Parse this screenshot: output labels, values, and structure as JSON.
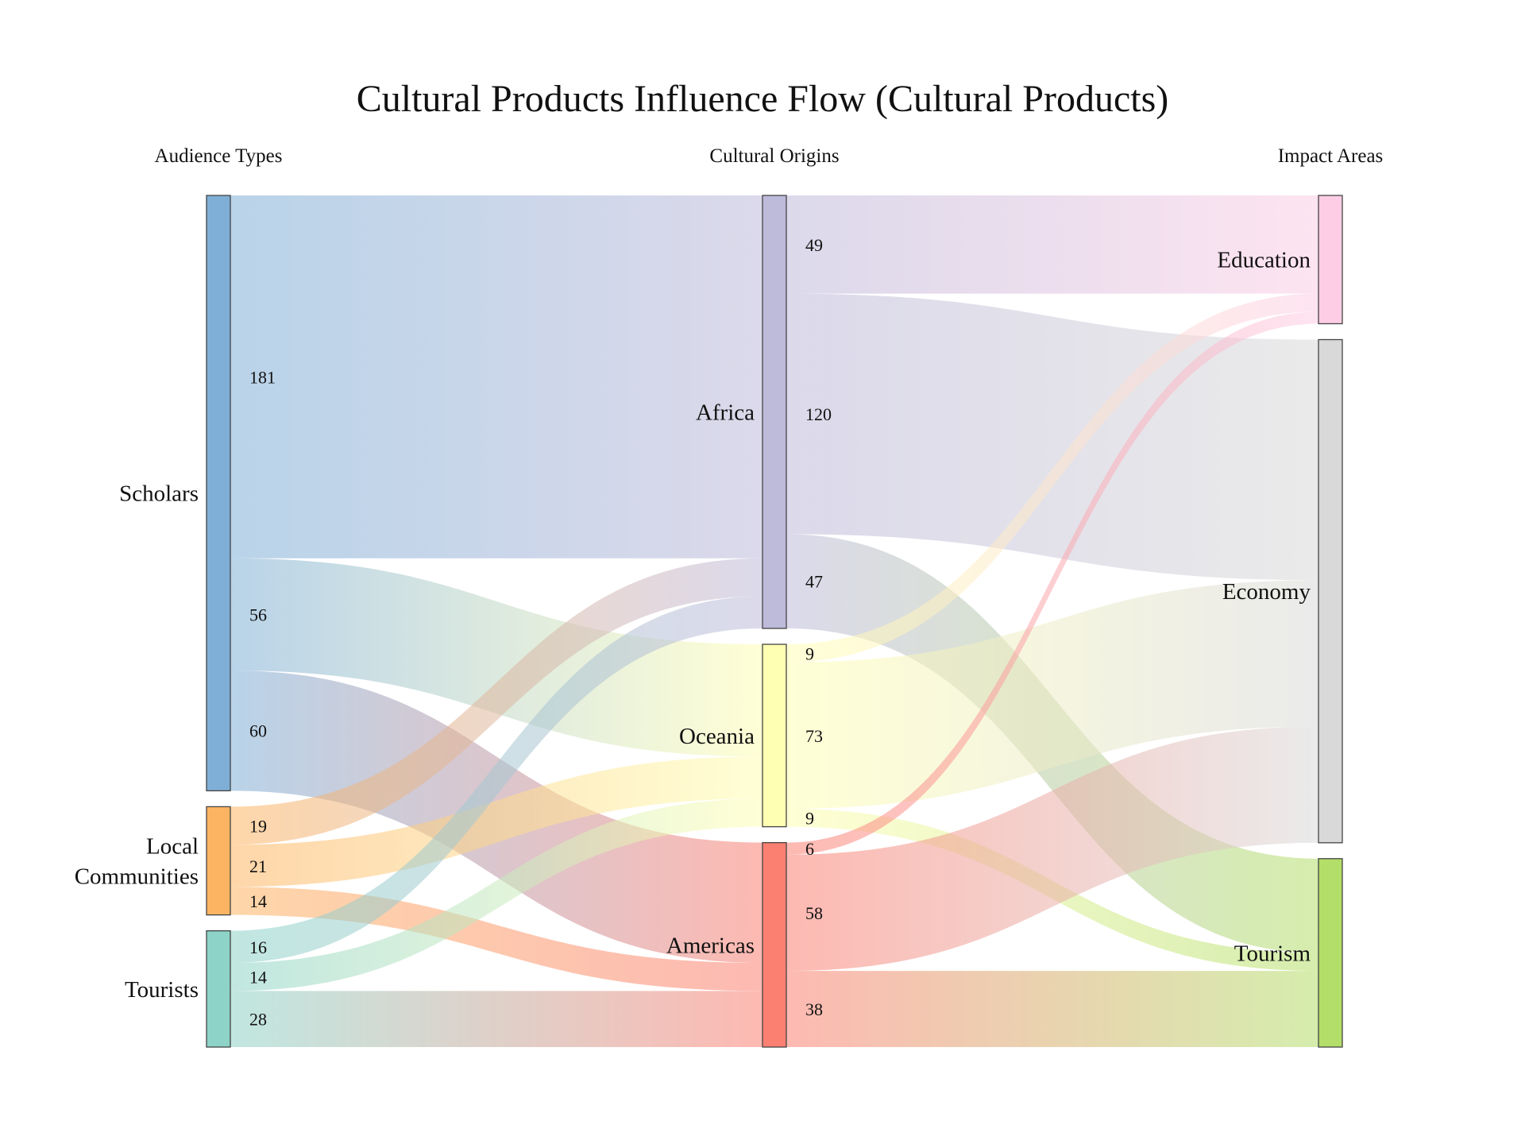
{
  "chart_data": {
    "type": "sankey",
    "title": "Cultural Products Influence Flow (Cultural Products)",
    "columns": [
      "Audience Types",
      "Cultural Origins",
      "Impact Areas"
    ],
    "nodes": [
      {
        "id": "scholars",
        "label": "Scholars",
        "column": 0,
        "color": "#7fafd6"
      },
      {
        "id": "local",
        "label": "Local\nCommunities",
        "column": 0,
        "color": "#fdb462"
      },
      {
        "id": "tourists",
        "label": "Tourists",
        "column": 0,
        "color": "#8dd3c7"
      },
      {
        "id": "africa",
        "label": "Africa",
        "column": 1,
        "color": "#bebada"
      },
      {
        "id": "oceania",
        "label": "Oceania",
        "column": 1,
        "color": "#ffffb3"
      },
      {
        "id": "americas",
        "label": "Americas",
        "column": 1,
        "color": "#fb8072"
      },
      {
        "id": "education",
        "label": "Education",
        "column": 2,
        "color": "#fccde5"
      },
      {
        "id": "economy",
        "label": "Economy",
        "column": 2,
        "color": "#d9d9d9"
      },
      {
        "id": "tourism",
        "label": "Tourism",
        "column": 2,
        "color": "#b3de69"
      }
    ],
    "links": [
      {
        "source": "scholars",
        "target": "africa",
        "value": 181
      },
      {
        "source": "scholars",
        "target": "oceania",
        "value": 56
      },
      {
        "source": "scholars",
        "target": "americas",
        "value": 60
      },
      {
        "source": "local",
        "target": "africa",
        "value": 19
      },
      {
        "source": "local",
        "target": "oceania",
        "value": 21
      },
      {
        "source": "local",
        "target": "americas",
        "value": 14
      },
      {
        "source": "tourists",
        "target": "africa",
        "value": 16
      },
      {
        "source": "tourists",
        "target": "oceania",
        "value": 14
      },
      {
        "source": "tourists",
        "target": "americas",
        "value": 28
      },
      {
        "source": "africa",
        "target": "education",
        "value": 49
      },
      {
        "source": "africa",
        "target": "economy",
        "value": 120
      },
      {
        "source": "africa",
        "target": "tourism",
        "value": 47
      },
      {
        "source": "oceania",
        "target": "education",
        "value": 9
      },
      {
        "source": "oceania",
        "target": "economy",
        "value": 73
      },
      {
        "source": "oceania",
        "target": "tourism",
        "value": 9
      },
      {
        "source": "americas",
        "target": "education",
        "value": 6
      },
      {
        "source": "americas",
        "target": "economy",
        "value": 58
      },
      {
        "source": "americas",
        "target": "tourism",
        "value": 38
      }
    ]
  }
}
